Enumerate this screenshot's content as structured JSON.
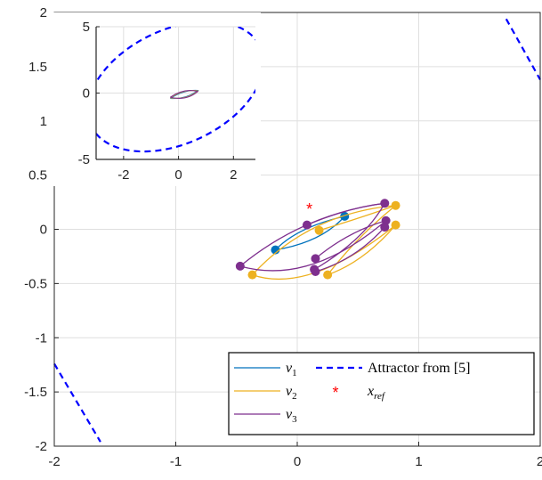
{
  "chart_data": [
    {
      "type": "line",
      "role": "main",
      "xlim": [
        -2,
        2
      ],
      "ylim": [
        -2,
        2
      ],
      "xticks": [
        "-2",
        "-1",
        "0",
        "1",
        "2"
      ],
      "yticks": [
        "2",
        "1.5",
        "1",
        "0.5",
        "0",
        "-0.5",
        "-1",
        "-1.5",
        "-2"
      ],
      "grid": true,
      "legend_position": "bottom-right",
      "legend": [
        {
          "key": "nu1",
          "base": "ν",
          "sub": "1",
          "style": "solid",
          "color": "#0072BD"
        },
        {
          "key": "nu2",
          "base": "ν",
          "sub": "2",
          "style": "solid",
          "color": "#EDB120"
        },
        {
          "key": "nu3",
          "base": "ν",
          "sub": "3",
          "style": "solid",
          "color": "#7E2F8E"
        },
        {
          "key": "attractor",
          "text": "Attractor from [5]",
          "style": "dashed",
          "color": "#0000FF"
        },
        {
          "key": "xref",
          "base": "x",
          "sub": "ref",
          "style": "marker",
          "marker": "*",
          "color": "#FF0000"
        }
      ],
      "series": [
        {
          "name": "ν1",
          "color": "#0072BD",
          "points": [
            [
              -0.18,
              -0.19
            ],
            [
              0.39,
              0.12
            ]
          ],
          "arcs": [
            {
              "from": [
                -0.18,
                -0.19
              ],
              "to": [
                0.39,
                0.12
              ],
              "ctrl": [
                0.0,
                0.02
              ]
            },
            {
              "from": [
                -0.18,
                -0.19
              ],
              "to": [
                0.39,
                0.12
              ],
              "ctrl": [
                0.2,
                -0.12
              ]
            }
          ]
        },
        {
          "name": "ν2",
          "color": "#EDB120",
          "points": [
            [
              -0.37,
              -0.42
            ],
            [
              0.81,
              0.22
            ],
            [
              0.18,
              -0.01
            ],
            [
              0.81,
              0.04
            ],
            [
              0.25,
              -0.42
            ]
          ],
          "arcs": [
            {
              "from": [
                -0.37,
                -0.42
              ],
              "to": [
                0.81,
                0.22
              ],
              "ctrl": [
                0.1,
                0.15
              ]
            },
            {
              "from": [
                -0.37,
                -0.42
              ],
              "to": [
                0.81,
                0.04
              ],
              "ctrl": [
                0.1,
                -0.6
              ]
            },
            {
              "from": [
                0.18,
                -0.01
              ],
              "to": [
                0.81,
                0.22
              ],
              "ctrl": [
                0.45,
                0.08
              ]
            },
            {
              "from": [
                0.25,
                -0.42
              ],
              "to": [
                0.81,
                0.04
              ],
              "ctrl": [
                0.55,
                -0.3
              ]
            },
            {
              "from": [
                0.25,
                -0.42
              ],
              "to": [
                0.81,
                0.22
              ],
              "ctrl": [
                0.5,
                -0.06
              ]
            }
          ]
        },
        {
          "name": "ν3",
          "color": "#7E2F8E",
          "points": [
            [
              -0.47,
              -0.34
            ],
            [
              0.72,
              0.24
            ],
            [
              0.08,
              0.04
            ],
            [
              0.14,
              -0.37
            ],
            [
              0.15,
              -0.27
            ],
            [
              0.73,
              0.08
            ],
            [
              0.72,
              0.02
            ],
            [
              0.15,
              -0.39
            ]
          ],
          "arcs": [
            {
              "from": [
                -0.47,
                -0.34
              ],
              "to": [
                0.72,
                0.24
              ],
              "ctrl": [
                0.05,
                0.14
              ]
            },
            {
              "from": [
                -0.47,
                -0.34
              ],
              "to": [
                0.73,
                0.08
              ],
              "ctrl": [
                0.1,
                -0.52
              ]
            },
            {
              "from": [
                0.08,
                0.04
              ],
              "to": [
                0.72,
                0.24
              ],
              "ctrl": [
                0.42,
                0.2
              ]
            },
            {
              "from": [
                0.14,
                -0.37
              ],
              "to": [
                0.72,
                0.24
              ],
              "ctrl": [
                0.55,
                -0.1
              ]
            },
            {
              "from": [
                0.15,
                -0.27
              ],
              "to": [
                0.73,
                0.08
              ],
              "ctrl": [
                0.42,
                -0.02
              ]
            },
            {
              "from": [
                0.15,
                -0.39
              ],
              "to": [
                0.72,
                0.02
              ],
              "ctrl": [
                0.48,
                -0.28
              ]
            }
          ]
        }
      ],
      "xref": [
        0.1,
        0.2
      ],
      "attractor_segments": [
        {
          "style": "dashed",
          "color": "#0000FF",
          "points": [
            [
              1.72,
              1.94
            ],
            [
              2.0,
              1.38
            ]
          ]
        },
        {
          "style": "dashed",
          "color": "#0000FF",
          "points": [
            [
              -2.0,
              -1.24
            ],
            [
              -1.62,
              -1.96
            ]
          ]
        }
      ]
    },
    {
      "type": "line",
      "role": "inset",
      "xlim": [
        -3,
        2.8
      ],
      "ylim": [
        -5,
        5
      ],
      "xticks": [
        "-2",
        "0",
        "2"
      ],
      "yticks": [
        "5",
        "0",
        "-5"
      ],
      "grid": true,
      "attractor": {
        "center": [
          -0.1,
          0.5
        ],
        "semi_axes": [
          3.4,
          4.3
        ],
        "rotation_deg": -25,
        "style": "dashed",
        "color": "#0000FF"
      },
      "orbit_span_x": [
        -0.3,
        0.7
      ],
      "orbit_span_y": [
        -0.4,
        0.2
      ]
    }
  ]
}
